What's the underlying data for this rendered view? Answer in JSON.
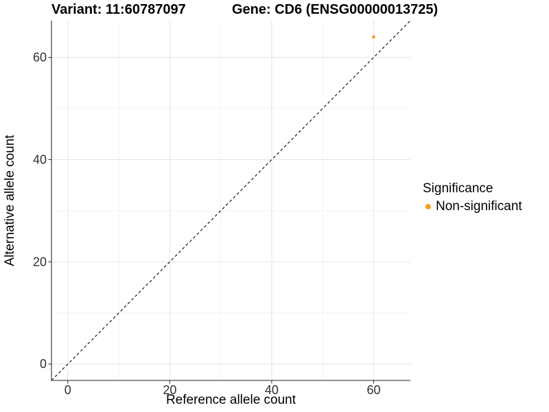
{
  "chart_data": {
    "type": "scatter",
    "title_left": "Variant: 11:60787097",
    "title_right": "Gene: CD6 (ENSG00000013725)",
    "xlabel": "Reference allele count",
    "ylabel": "Alternative allele count",
    "xlim": [
      -3.2,
      67.2
    ],
    "ylim": [
      -3.2,
      67.2
    ],
    "x_ticks": [
      0,
      20,
      40,
      60
    ],
    "y_ticks": [
      0,
      20,
      40,
      60
    ],
    "x_minor_ticks": [
      10,
      30,
      50
    ],
    "y_minor_ticks": [
      10,
      30,
      50
    ],
    "grid": true,
    "identity_line": {
      "style": "dashed",
      "color": "#000000",
      "from": -3.2,
      "to": 67.2
    },
    "series": [
      {
        "name": "Non-significant",
        "color": "#FA9E1E",
        "points": [
          [
            60,
            64
          ]
        ]
      }
    ],
    "legend": {
      "title": "Significance",
      "position": "right",
      "entries": [
        {
          "label": "Non-significant",
          "color": "#FA9E1E"
        }
      ]
    },
    "colors": {
      "grid_major": "#e4e4e4",
      "grid_minor": "#f2f2f2",
      "axis_line": "#4d4d4d",
      "tick_mark": "#333333",
      "tick_text": "#303030",
      "background": "#ffffff"
    }
  }
}
